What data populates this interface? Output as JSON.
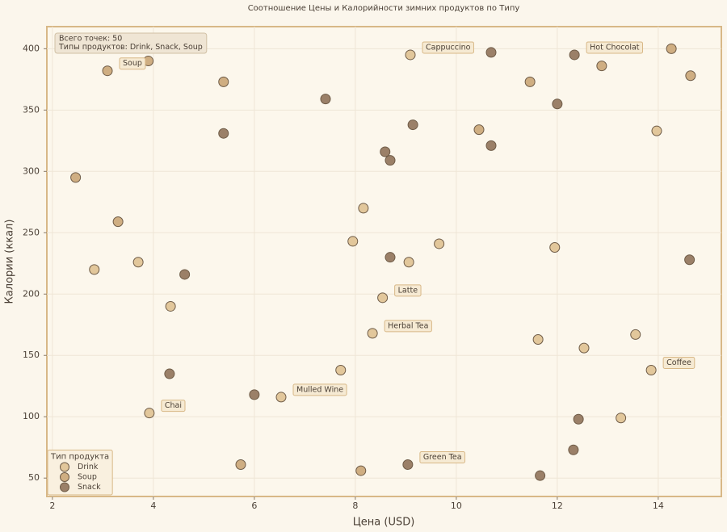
{
  "chart_data": {
    "type": "scatter",
    "title": "Соотношение Цены и Калорийности зимних продуктов по Типу",
    "x_label": "Цена (USD)",
    "y_label": "Калории (ккал)",
    "xlim": [
      1.89,
      15.25
    ],
    "ylim": [
      35,
      418
    ],
    "xticks": [
      2,
      4,
      6,
      8,
      10,
      12,
      14
    ],
    "yticks": [
      50,
      100,
      150,
      200,
      250,
      300,
      350,
      400
    ],
    "grid": true,
    "legend_title": "Тип продукта",
    "legend_position": "lower left",
    "info_box": [
      "Всего точек: 50",
      "Типы продуктов: Drink, Snack, Soup"
    ],
    "series": [
      {
        "name": "Drink",
        "color": "#e2c79b",
        "x": [
          2.83,
          3.7,
          4.34,
          3.92,
          6.53,
          7.71,
          7.95,
          8.16,
          8.34,
          8.54,
          9.06,
          9.09,
          9.66,
          11.62,
          11.95,
          12.53,
          13.26,
          13.55,
          13.86,
          13.97
        ],
        "values": [
          220,
          226,
          190,
          103,
          116,
          138,
          243,
          270,
          168,
          197,
          226,
          395,
          241,
          163,
          238,
          156,
          99,
          167,
          138,
          333
        ]
      },
      {
        "name": "Soup",
        "color": "#cfae82",
        "x": [
          2.46,
          3.09,
          3.3,
          3.9,
          5.39,
          5.73,
          8.11,
          10.45,
          11.46,
          12.88,
          14.26,
          14.64
        ],
        "values": [
          295,
          382,
          259,
          390,
          373,
          61,
          56,
          334,
          373,
          386,
          400,
          378
        ]
      },
      {
        "name": "Snack",
        "color": "#9b8068",
        "x": [
          4.32,
          4.62,
          5.39,
          6.0,
          7.41,
          8.59,
          8.69,
          8.69,
          9.04,
          9.14,
          10.69,
          10.69,
          11.66,
          12.0,
          12.32,
          12.34,
          12.42,
          14.62
        ],
        "values": [
          135,
          216,
          331,
          118,
          359,
          316,
          309,
          230,
          61,
          338,
          397,
          321,
          52,
          355,
          73,
          395,
          98,
          228
        ]
      }
    ],
    "annotations": [
      {
        "text": "Soup",
        "x": 3.09,
        "y": 382
      },
      {
        "text": "Cappuccino",
        "x": 9.09,
        "y": 395
      },
      {
        "text": "Hot Chocolat",
        "x": 12.34,
        "y": 395
      },
      {
        "text": "Latte",
        "x": 8.54,
        "y": 197
      },
      {
        "text": "Herbal Tea",
        "x": 8.34,
        "y": 168
      },
      {
        "text": "Coffee",
        "x": 13.86,
        "y": 138
      },
      {
        "text": "Mulled Wine",
        "x": 6.53,
        "y": 116
      },
      {
        "text": "Chai",
        "x": 3.92,
        "y": 103
      },
      {
        "text": "Green Tea",
        "x": 9.04,
        "y": 61
      }
    ]
  }
}
